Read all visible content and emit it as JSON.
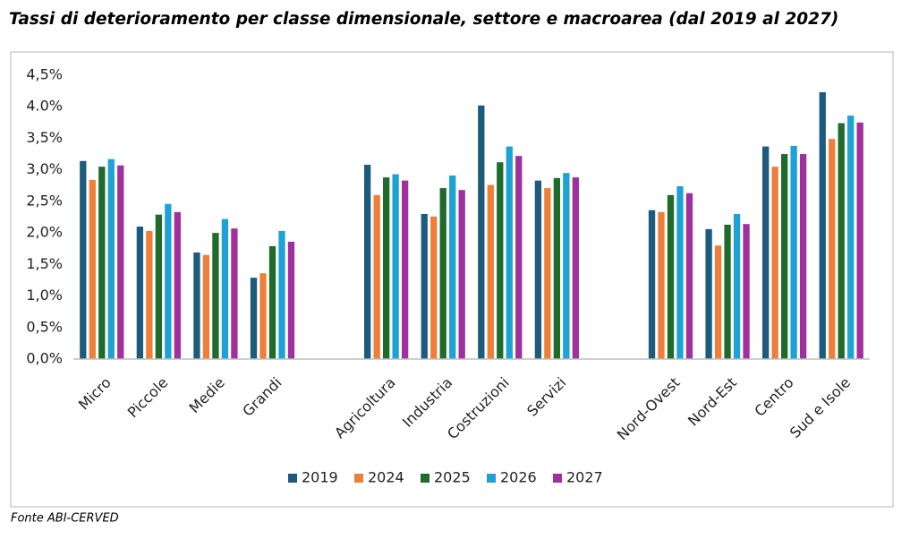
{
  "chart_data": {
    "type": "bar",
    "title": "Tassi di deterioramento per classe dimensionale, settore e macroarea (dal 2019 al 2027)",
    "source": "Fonte ABI-CERVED",
    "categories": [
      "Micro",
      "Piccole",
      "Medie",
      "Grandi",
      null,
      "Agricoltura",
      "Industria",
      "Costruzioni",
      "Servizi",
      null,
      "Nord-Ovest",
      "Nord-Est",
      "Centro",
      "Sud e Isole"
    ],
    "series": [
      {
        "name": "2019",
        "color": "#1d5b7c",
        "values": [
          3.14,
          2.1,
          1.69,
          1.29,
          null,
          3.08,
          2.3,
          4.02,
          2.83,
          null,
          2.36,
          2.06,
          3.37,
          4.23
        ]
      },
      {
        "name": "2024",
        "color": "#ee7f3a",
        "values": [
          2.84,
          2.03,
          1.65,
          1.36,
          null,
          2.6,
          2.26,
          2.76,
          2.71,
          null,
          2.33,
          1.8,
          3.05,
          3.49
        ]
      },
      {
        "name": "2025",
        "color": "#1f6b2c",
        "values": [
          3.05,
          2.29,
          2.0,
          1.79,
          null,
          2.88,
          2.71,
          3.12,
          2.87,
          null,
          2.6,
          2.13,
          3.25,
          3.74
        ]
      },
      {
        "name": "2026",
        "color": "#1ea2d6",
        "values": [
          3.17,
          2.46,
          2.22,
          2.03,
          null,
          2.93,
          2.91,
          3.37,
          2.95,
          null,
          2.74,
          2.3,
          3.38,
          3.86
        ]
      },
      {
        "name": "2027",
        "color": "#a0309e",
        "values": [
          3.07,
          2.33,
          2.07,
          1.86,
          null,
          2.83,
          2.68,
          3.22,
          2.88,
          null,
          2.63,
          2.14,
          3.25,
          3.75
        ]
      }
    ],
    "ylim": [
      0,
      4.5
    ],
    "yticks": [
      {
        "value": 0,
        "label": "0,0%"
      },
      {
        "value": 0.5,
        "label": "0,5%"
      },
      {
        "value": 1,
        "label": "1,0%"
      },
      {
        "value": 1.5,
        "label": "1,5%"
      },
      {
        "value": 2,
        "label": "2,0%"
      },
      {
        "value": 2.5,
        "label": "2,5%"
      },
      {
        "value": 3,
        "label": "3,0%"
      },
      {
        "value": 3.5,
        "label": "3,5%"
      },
      {
        "value": 4,
        "label": "4.0%"
      },
      {
        "value": 4.5,
        "label": "4,5%"
      }
    ],
    "grid": false,
    "legend": "bottom"
  }
}
